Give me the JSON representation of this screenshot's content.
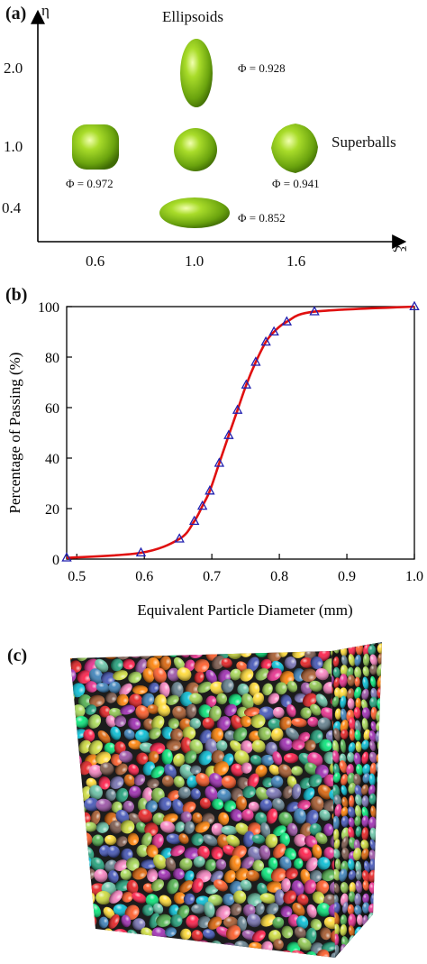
{
  "panel_a": {
    "label": "(a)",
    "x_axis_symbol": "ξ",
    "y_axis_symbol": "η",
    "x_ticks": [
      "0.6",
      "1.0",
      "1.6"
    ],
    "y_ticks": [
      "2.0",
      "1.0",
      "0.4"
    ],
    "group_labels": {
      "ellipsoids": "Ellipsoids",
      "superballs": "Superballs"
    },
    "particles": [
      {
        "shape": "prolate-ellipsoid",
        "phi_label": "Φ = 0.928"
      },
      {
        "shape": "rounded-cube-superball",
        "phi_label": "Φ = 0.972"
      },
      {
        "shape": "sphere",
        "phi_label": ""
      },
      {
        "shape": "octahedral-superball",
        "phi_label": "Φ = 0.941"
      },
      {
        "shape": "oblate-ellipsoid",
        "phi_label": "Φ = 0.852"
      }
    ],
    "particle_color": "#8ac414"
  },
  "panel_b": {
    "label": "(b)",
    "chart_data": {
      "type": "line",
      "xlabel": "Equivalent Particle Diameter (mm)",
      "ylabel": "Percentage of Passing (%)",
      "xlim": [
        0.485,
        1.0
      ],
      "ylim": [
        0,
        100
      ],
      "x_ticks": [
        0.5,
        0.6,
        0.7,
        0.8,
        0.9,
        1.0
      ],
      "y_ticks": [
        0,
        20,
        40,
        60,
        80,
        100
      ],
      "grid": false,
      "series": [
        {
          "line_color": "#e01010",
          "marker": "triangle",
          "marker_color": "#2020b0",
          "x": [
            0.485,
            0.595,
            0.652,
            0.674,
            0.686,
            0.697,
            0.711,
            0.725,
            0.738,
            0.751,
            0.765,
            0.78,
            0.792,
            0.811,
            0.852,
            1.0
          ],
          "y": [
            0.5,
            2.5,
            8,
            15,
            21,
            27,
            38,
            49,
            59,
            69,
            78,
            86,
            90,
            94,
            98,
            100
          ]
        }
      ]
    }
  },
  "panel_c": {
    "label": "(c)",
    "palette": [
      "#e41a1c",
      "#377eb8",
      "#4daf4a",
      "#984ea3",
      "#ff7f00",
      "#ffd92f",
      "#a65628",
      "#f781bf",
      "#1b9e77",
      "#66c2a5",
      "#e7298a",
      "#7570b3",
      "#d95f02",
      "#a6d854",
      "#00bcd4",
      "#8bc34a",
      "#ff5722",
      "#9c27b0",
      "#3f51b5",
      "#cddc39",
      "#607d8b",
      "#795548",
      "#00e676",
      "#ff1744"
    ]
  }
}
